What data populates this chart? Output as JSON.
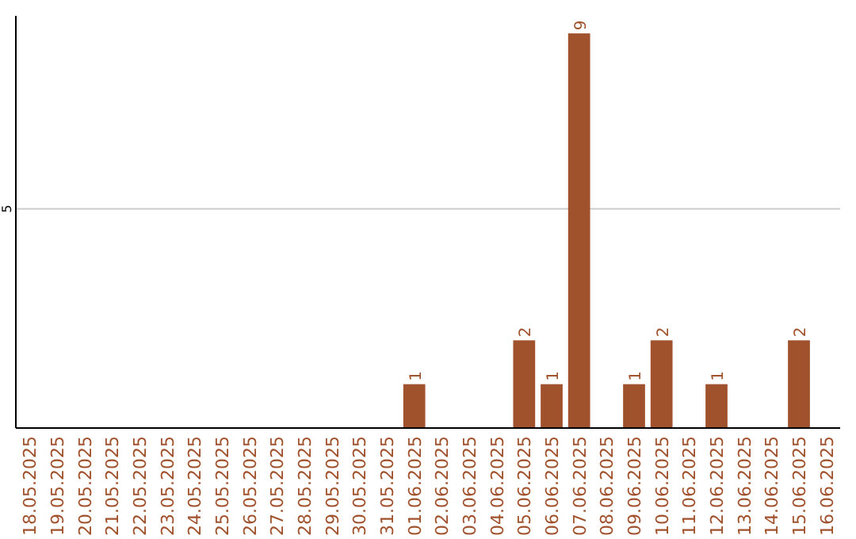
{
  "chart_data": {
    "type": "bar",
    "categories": [
      "18.05.2025",
      "19.05.2025",
      "20.05.2025",
      "21.05.2025",
      "22.05.2025",
      "23.05.2025",
      "24.05.2025",
      "25.05.2025",
      "26.05.2025",
      "27.05.2025",
      "28.05.2025",
      "29.05.2025",
      "30.05.2025",
      "31.05.2025",
      "01.06.2025",
      "02.06.2025",
      "03.06.2025",
      "04.06.2025",
      "05.06.2025",
      "06.06.2025",
      "07.06.2025",
      "08.06.2025",
      "09.06.2025",
      "10.06.2025",
      "11.06.2025",
      "12.06.2025",
      "13.06.2025",
      "14.06.2025",
      "15.06.2025",
      "16.06.2025"
    ],
    "values": [
      null,
      null,
      null,
      null,
      null,
      null,
      null,
      null,
      null,
      null,
      null,
      null,
      null,
      null,
      1,
      null,
      null,
      null,
      2,
      1,
      9,
      null,
      1,
      2,
      null,
      1,
      null,
      null,
      2,
      null
    ],
    "data_labels": true,
    "color": "#a0522d",
    "ylim": [
      0,
      9.4
    ],
    "yticks": [
      5
    ],
    "grid": "y"
  }
}
